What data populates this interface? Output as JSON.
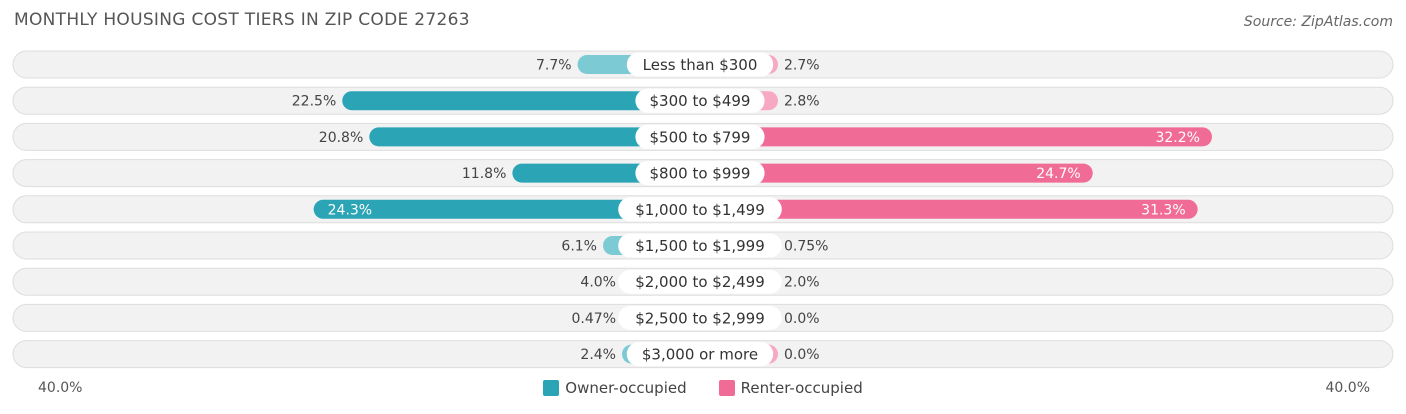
{
  "title": "MONTHLY HOUSING COST TIERS IN ZIP CODE 27263",
  "source": "Source: ZipAtlas.com",
  "axis": {
    "left_label": "40.0%",
    "right_label": "40.0%"
  },
  "legend": {
    "owner": "Owner-occupied",
    "renter": "Renter-occupied"
  },
  "colors": {
    "owner_dark": "#2ba5b5",
    "owner_light": "#7ccad3",
    "renter_dark": "#f06b95",
    "renter_light": "#f7a8c2",
    "track": "#f2f2f2",
    "track_border": "#dddddd"
  },
  "chart_data": {
    "type": "bar",
    "orientation": "horizontal-diverging",
    "categories": [
      "Less than $300",
      "$300 to $499",
      "$500 to $799",
      "$800 to $999",
      "$1,000 to $1,499",
      "$1,500 to $1,999",
      "$2,000 to $2,499",
      "$2,500 to $2,999",
      "$3,000 or more"
    ],
    "series": [
      {
        "name": "Owner-occupied",
        "values": [
          7.7,
          22.5,
          20.8,
          11.8,
          24.3,
          6.1,
          4.0,
          0.47,
          2.4
        ],
        "labels": [
          "7.7%",
          "22.5%",
          "20.8%",
          "11.8%",
          "24.3%",
          "6.1%",
          "4.0%",
          "0.47%",
          "2.4%"
        ]
      },
      {
        "name": "Renter-occupied",
        "values": [
          2.7,
          2.8,
          32.2,
          24.7,
          31.3,
          0.75,
          2.0,
          0.0,
          0.0
        ],
        "labels": [
          "2.7%",
          "2.8%",
          "32.2%",
          "24.7%",
          "31.3%",
          "0.75%",
          "2.0%",
          "0.0%",
          "0.0%"
        ]
      }
    ],
    "xlim": [
      -40,
      40
    ],
    "title": "MONTHLY HOUSING COST TIERS IN ZIP CODE 27263",
    "legend_position": "bottom-center"
  }
}
